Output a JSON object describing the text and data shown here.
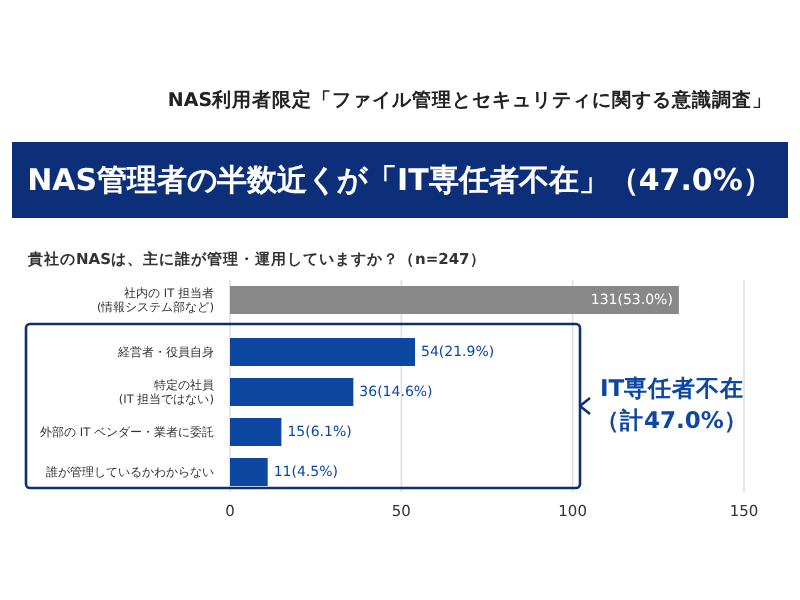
{
  "chart_data": {
    "type": "bar",
    "orientation": "horizontal",
    "title": "NAS管理者の半数近くが「IT専任者不在」（47.0%）",
    "subtitle": "NAS利用者限定「ファイル管理とセキュリティに関する意識調査」",
    "annotations": [
      "貴社のNASは、主に誰が管理・運用していますか？（n=247）",
      "IT専任者不在",
      "（計47.0%）"
    ],
    "categories": [
      "社内の IT 担当者\n(情報システム部など)",
      "経営者・役員自身",
      "特定の社員\n(IT 担当ではない)",
      "外部の IT ベンダー・業者に委託",
      "誰が管理しているかわからない"
    ],
    "values": [
      131,
      54,
      36,
      15,
      11
    ],
    "colors": [
      "#888888",
      "#0d47a1",
      "#0d47a1",
      "#0d47a1",
      "#0d47a1"
    ],
    "value_labels": [
      "131(53.0%)",
      "54(21.9%)",
      "36(14.6%)",
      "15(6.1%)",
      "11(4.5%)"
    ],
    "xlim": [
      0,
      150
    ],
    "xticks": [
      0,
      50,
      100,
      150
    ],
    "grid": "x"
  }
}
